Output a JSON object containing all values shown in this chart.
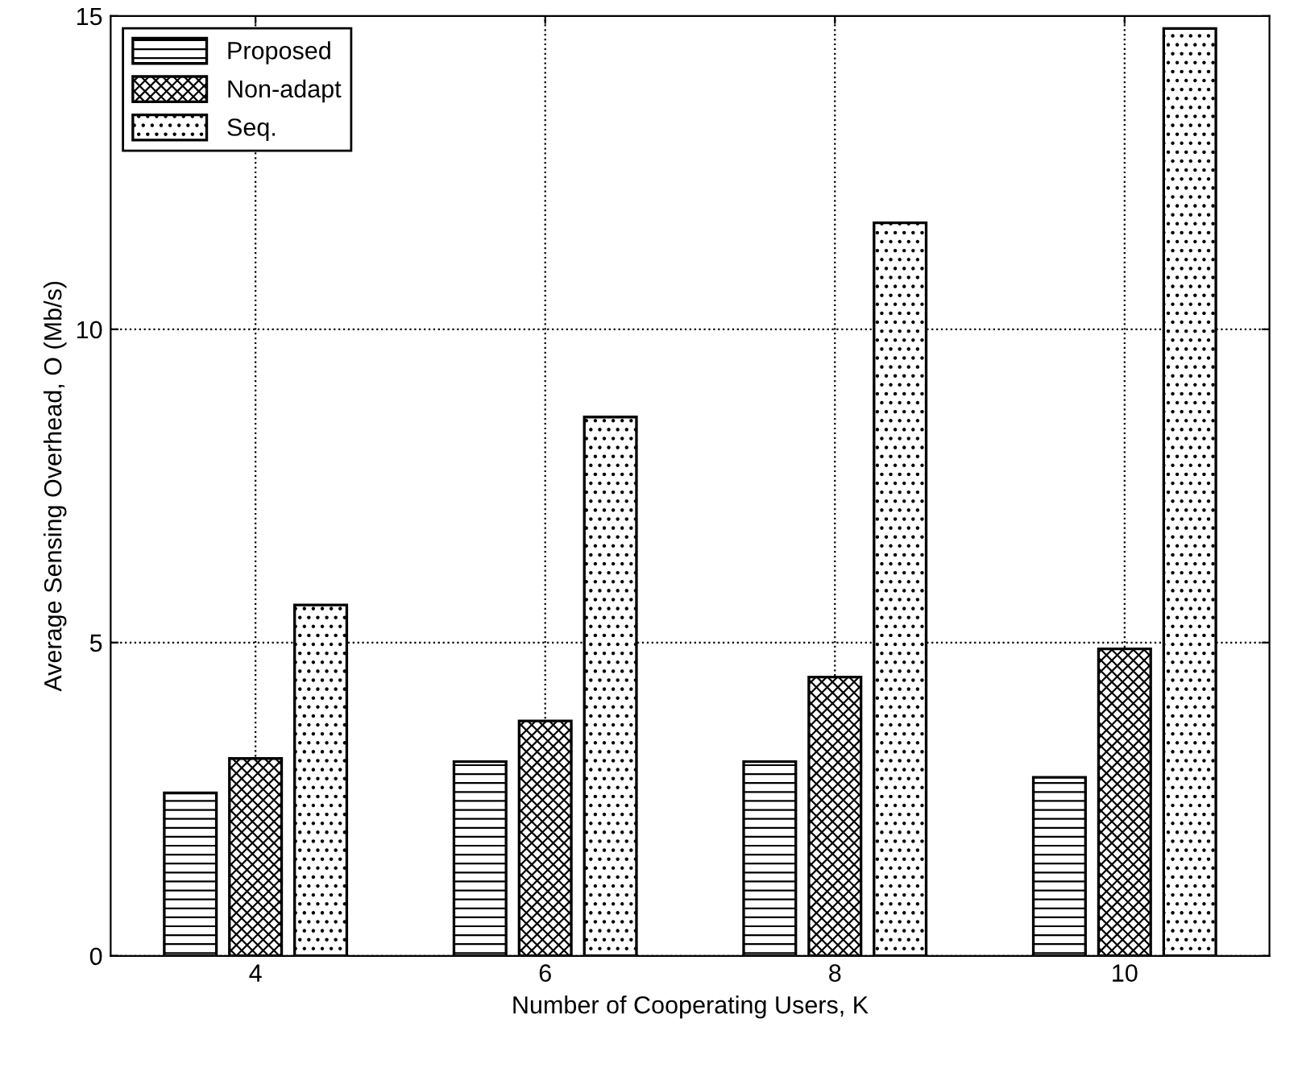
{
  "chart_data": {
    "type": "bar",
    "xlabel": "Number of Cooperating Users, K",
    "ylabel": "Average Sensing Overhead, O (Mb/s)",
    "categories": [
      "4",
      "6",
      "8",
      "10"
    ],
    "series": [
      {
        "name": "Proposed",
        "color": "#000000",
        "values": [
          2.6,
          3.1,
          3.1,
          2.85
        ]
      },
      {
        "name": "Non-adapt",
        "color": "#000000",
        "values": [
          3.15,
          3.75,
          4.45,
          4.9
        ]
      },
      {
        "name": "Seq.",
        "color": "#000000",
        "values": [
          5.6,
          8.6,
          11.7,
          14.8
        ]
      }
    ],
    "ylim": [
      0,
      15
    ],
    "yticks": [
      0,
      5,
      10,
      15
    ],
    "grid": true,
    "legend": "top left"
  }
}
